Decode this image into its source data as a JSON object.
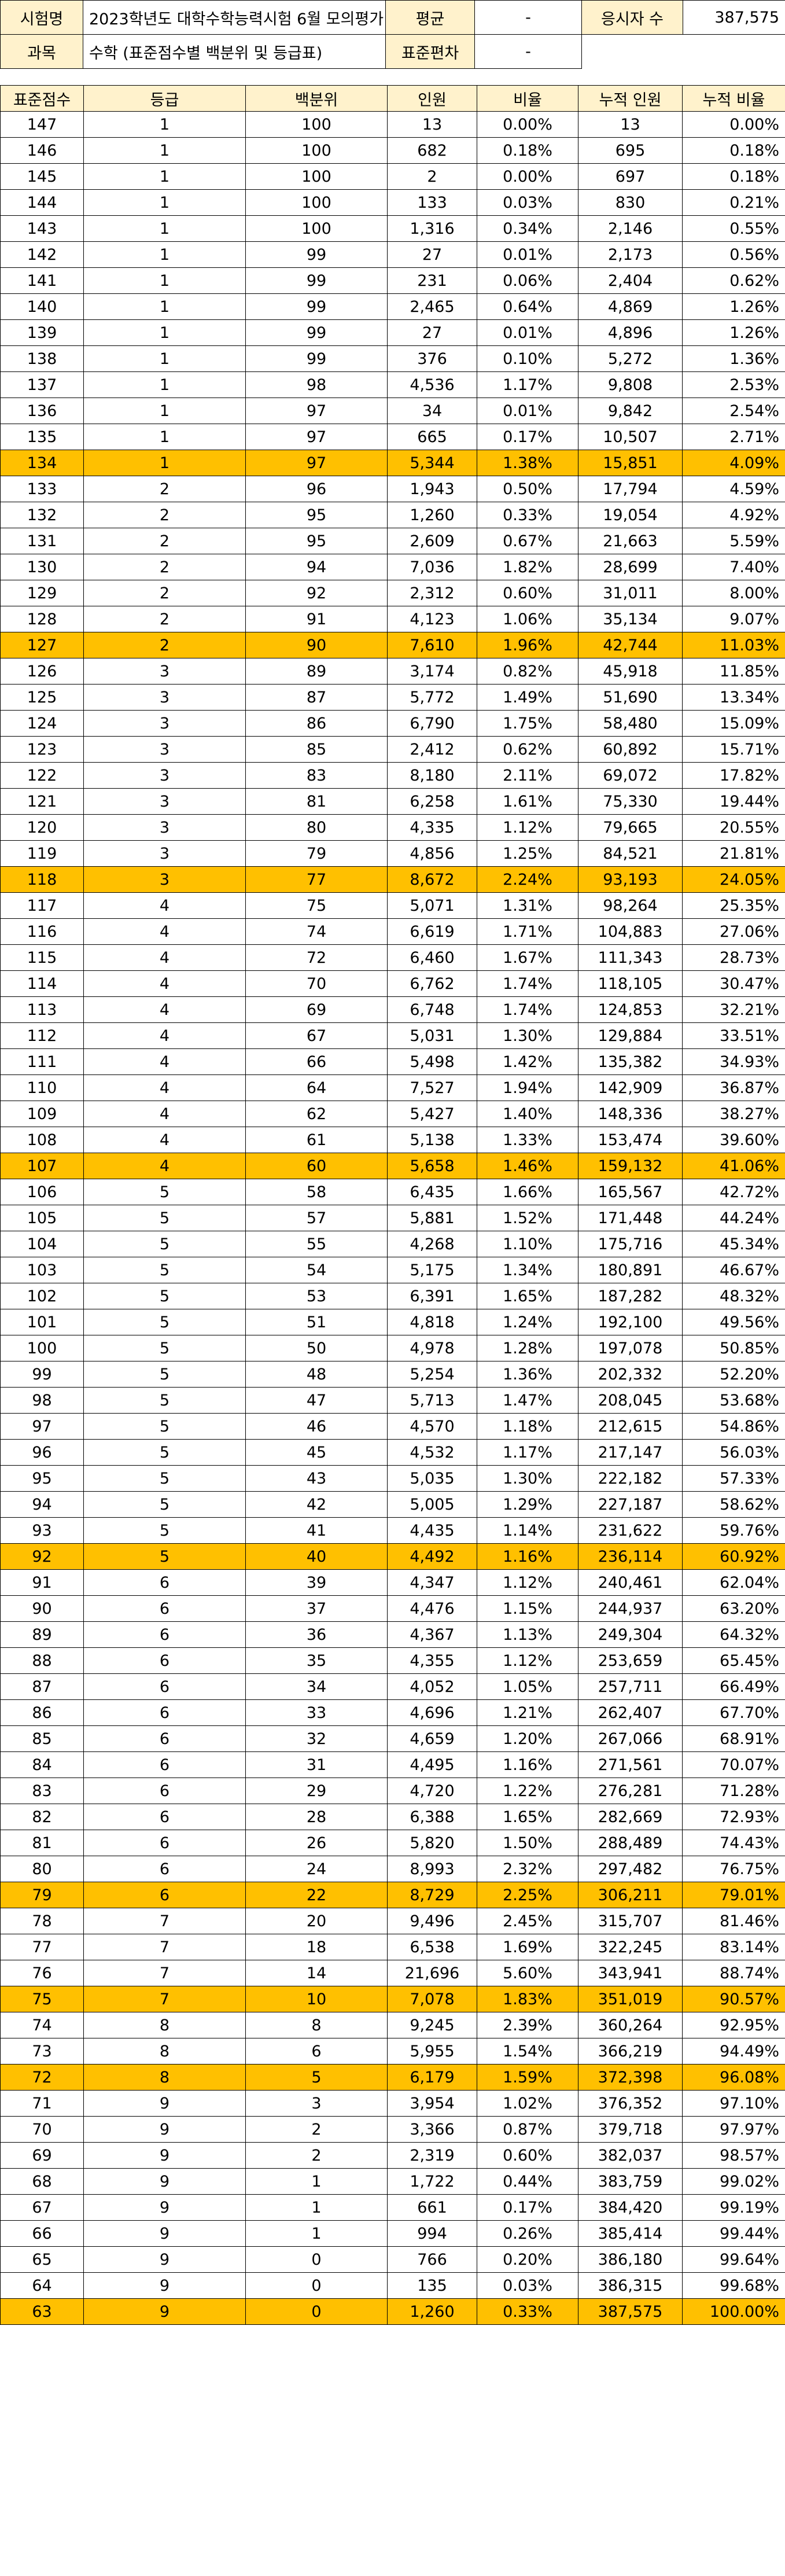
{
  "info": {
    "exam_label": "시험명",
    "exam_value": "2023학년도 대학수학능력시험 6월 모의평가",
    "mean_label": "평균",
    "mean_value": "-",
    "examinees_label": "응시자 수",
    "examinees_value": "387,575",
    "subject_label": "과목",
    "subject_value": "수학 (표준점수별 백분위 및 등급표)",
    "sd_label": "표준편차",
    "sd_value": "-"
  },
  "table": {
    "headers": [
      "표준점수",
      "등급",
      "백분위",
      "인원",
      "비율",
      "누적 인원",
      "누적 비율"
    ],
    "highlight_color": "#ffc000",
    "header_color": "#fff2cc",
    "rows": [
      {
        "score": "147",
        "grade": "1",
        "pct": "100",
        "count": "13",
        "ratio": "0.00%",
        "cum": "13",
        "cumratio": "0.00%",
        "hl": false
      },
      {
        "score": "146",
        "grade": "1",
        "pct": "100",
        "count": "682",
        "ratio": "0.18%",
        "cum": "695",
        "cumratio": "0.18%",
        "hl": false
      },
      {
        "score": "145",
        "grade": "1",
        "pct": "100",
        "count": "2",
        "ratio": "0.00%",
        "cum": "697",
        "cumratio": "0.18%",
        "hl": false
      },
      {
        "score": "144",
        "grade": "1",
        "pct": "100",
        "count": "133",
        "ratio": "0.03%",
        "cum": "830",
        "cumratio": "0.21%",
        "hl": false
      },
      {
        "score": "143",
        "grade": "1",
        "pct": "100",
        "count": "1,316",
        "ratio": "0.34%",
        "cum": "2,146",
        "cumratio": "0.55%",
        "hl": false
      },
      {
        "score": "142",
        "grade": "1",
        "pct": "99",
        "count": "27",
        "ratio": "0.01%",
        "cum": "2,173",
        "cumratio": "0.56%",
        "hl": false
      },
      {
        "score": "141",
        "grade": "1",
        "pct": "99",
        "count": "231",
        "ratio": "0.06%",
        "cum": "2,404",
        "cumratio": "0.62%",
        "hl": false
      },
      {
        "score": "140",
        "grade": "1",
        "pct": "99",
        "count": "2,465",
        "ratio": "0.64%",
        "cum": "4,869",
        "cumratio": "1.26%",
        "hl": false
      },
      {
        "score": "139",
        "grade": "1",
        "pct": "99",
        "count": "27",
        "ratio": "0.01%",
        "cum": "4,896",
        "cumratio": "1.26%",
        "hl": false
      },
      {
        "score": "138",
        "grade": "1",
        "pct": "99",
        "count": "376",
        "ratio": "0.10%",
        "cum": "5,272",
        "cumratio": "1.36%",
        "hl": false
      },
      {
        "score": "137",
        "grade": "1",
        "pct": "98",
        "count": "4,536",
        "ratio": "1.17%",
        "cum": "9,808",
        "cumratio": "2.53%",
        "hl": false
      },
      {
        "score": "136",
        "grade": "1",
        "pct": "97",
        "count": "34",
        "ratio": "0.01%",
        "cum": "9,842",
        "cumratio": "2.54%",
        "hl": false
      },
      {
        "score": "135",
        "grade": "1",
        "pct": "97",
        "count": "665",
        "ratio": "0.17%",
        "cum": "10,507",
        "cumratio": "2.71%",
        "hl": false
      },
      {
        "score": "134",
        "grade": "1",
        "pct": "97",
        "count": "5,344",
        "ratio": "1.38%",
        "cum": "15,851",
        "cumratio": "4.09%",
        "hl": true
      },
      {
        "score": "133",
        "grade": "2",
        "pct": "96",
        "count": "1,943",
        "ratio": "0.50%",
        "cum": "17,794",
        "cumratio": "4.59%",
        "hl": false
      },
      {
        "score": "132",
        "grade": "2",
        "pct": "95",
        "count": "1,260",
        "ratio": "0.33%",
        "cum": "19,054",
        "cumratio": "4.92%",
        "hl": false
      },
      {
        "score": "131",
        "grade": "2",
        "pct": "95",
        "count": "2,609",
        "ratio": "0.67%",
        "cum": "21,663",
        "cumratio": "5.59%",
        "hl": false
      },
      {
        "score": "130",
        "grade": "2",
        "pct": "94",
        "count": "7,036",
        "ratio": "1.82%",
        "cum": "28,699",
        "cumratio": "7.40%",
        "hl": false
      },
      {
        "score": "129",
        "grade": "2",
        "pct": "92",
        "count": "2,312",
        "ratio": "0.60%",
        "cum": "31,011",
        "cumratio": "8.00%",
        "hl": false
      },
      {
        "score": "128",
        "grade": "2",
        "pct": "91",
        "count": "4,123",
        "ratio": "1.06%",
        "cum": "35,134",
        "cumratio": "9.07%",
        "hl": false
      },
      {
        "score": "127",
        "grade": "2",
        "pct": "90",
        "count": "7,610",
        "ratio": "1.96%",
        "cum": "42,744",
        "cumratio": "11.03%",
        "hl": true
      },
      {
        "score": "126",
        "grade": "3",
        "pct": "89",
        "count": "3,174",
        "ratio": "0.82%",
        "cum": "45,918",
        "cumratio": "11.85%",
        "hl": false
      },
      {
        "score": "125",
        "grade": "3",
        "pct": "87",
        "count": "5,772",
        "ratio": "1.49%",
        "cum": "51,690",
        "cumratio": "13.34%",
        "hl": false
      },
      {
        "score": "124",
        "grade": "3",
        "pct": "86",
        "count": "6,790",
        "ratio": "1.75%",
        "cum": "58,480",
        "cumratio": "15.09%",
        "hl": false
      },
      {
        "score": "123",
        "grade": "3",
        "pct": "85",
        "count": "2,412",
        "ratio": "0.62%",
        "cum": "60,892",
        "cumratio": "15.71%",
        "hl": false
      },
      {
        "score": "122",
        "grade": "3",
        "pct": "83",
        "count": "8,180",
        "ratio": "2.11%",
        "cum": "69,072",
        "cumratio": "17.82%",
        "hl": false
      },
      {
        "score": "121",
        "grade": "3",
        "pct": "81",
        "count": "6,258",
        "ratio": "1.61%",
        "cum": "75,330",
        "cumratio": "19.44%",
        "hl": false
      },
      {
        "score": "120",
        "grade": "3",
        "pct": "80",
        "count": "4,335",
        "ratio": "1.12%",
        "cum": "79,665",
        "cumratio": "20.55%",
        "hl": false
      },
      {
        "score": "119",
        "grade": "3",
        "pct": "79",
        "count": "4,856",
        "ratio": "1.25%",
        "cum": "84,521",
        "cumratio": "21.81%",
        "hl": false
      },
      {
        "score": "118",
        "grade": "3",
        "pct": "77",
        "count": "8,672",
        "ratio": "2.24%",
        "cum": "93,193",
        "cumratio": "24.05%",
        "hl": true
      },
      {
        "score": "117",
        "grade": "4",
        "pct": "75",
        "count": "5,071",
        "ratio": "1.31%",
        "cum": "98,264",
        "cumratio": "25.35%",
        "hl": false
      },
      {
        "score": "116",
        "grade": "4",
        "pct": "74",
        "count": "6,619",
        "ratio": "1.71%",
        "cum": "104,883",
        "cumratio": "27.06%",
        "hl": false
      },
      {
        "score": "115",
        "grade": "4",
        "pct": "72",
        "count": "6,460",
        "ratio": "1.67%",
        "cum": "111,343",
        "cumratio": "28.73%",
        "hl": false
      },
      {
        "score": "114",
        "grade": "4",
        "pct": "70",
        "count": "6,762",
        "ratio": "1.74%",
        "cum": "118,105",
        "cumratio": "30.47%",
        "hl": false
      },
      {
        "score": "113",
        "grade": "4",
        "pct": "69",
        "count": "6,748",
        "ratio": "1.74%",
        "cum": "124,853",
        "cumratio": "32.21%",
        "hl": false
      },
      {
        "score": "112",
        "grade": "4",
        "pct": "67",
        "count": "5,031",
        "ratio": "1.30%",
        "cum": "129,884",
        "cumratio": "33.51%",
        "hl": false
      },
      {
        "score": "111",
        "grade": "4",
        "pct": "66",
        "count": "5,498",
        "ratio": "1.42%",
        "cum": "135,382",
        "cumratio": "34.93%",
        "hl": false
      },
      {
        "score": "110",
        "grade": "4",
        "pct": "64",
        "count": "7,527",
        "ratio": "1.94%",
        "cum": "142,909",
        "cumratio": "36.87%",
        "hl": false
      },
      {
        "score": "109",
        "grade": "4",
        "pct": "62",
        "count": "5,427",
        "ratio": "1.40%",
        "cum": "148,336",
        "cumratio": "38.27%",
        "hl": false
      },
      {
        "score": "108",
        "grade": "4",
        "pct": "61",
        "count": "5,138",
        "ratio": "1.33%",
        "cum": "153,474",
        "cumratio": "39.60%",
        "hl": false
      },
      {
        "score": "107",
        "grade": "4",
        "pct": "60",
        "count": "5,658",
        "ratio": "1.46%",
        "cum": "159,132",
        "cumratio": "41.06%",
        "hl": true
      },
      {
        "score": "106",
        "grade": "5",
        "pct": "58",
        "count": "6,435",
        "ratio": "1.66%",
        "cum": "165,567",
        "cumratio": "42.72%",
        "hl": false
      },
      {
        "score": "105",
        "grade": "5",
        "pct": "57",
        "count": "5,881",
        "ratio": "1.52%",
        "cum": "171,448",
        "cumratio": "44.24%",
        "hl": false
      },
      {
        "score": "104",
        "grade": "5",
        "pct": "55",
        "count": "4,268",
        "ratio": "1.10%",
        "cum": "175,716",
        "cumratio": "45.34%",
        "hl": false
      },
      {
        "score": "103",
        "grade": "5",
        "pct": "54",
        "count": "5,175",
        "ratio": "1.34%",
        "cum": "180,891",
        "cumratio": "46.67%",
        "hl": false
      },
      {
        "score": "102",
        "grade": "5",
        "pct": "53",
        "count": "6,391",
        "ratio": "1.65%",
        "cum": "187,282",
        "cumratio": "48.32%",
        "hl": false
      },
      {
        "score": "101",
        "grade": "5",
        "pct": "51",
        "count": "4,818",
        "ratio": "1.24%",
        "cum": "192,100",
        "cumratio": "49.56%",
        "hl": false
      },
      {
        "score": "100",
        "grade": "5",
        "pct": "50",
        "count": "4,978",
        "ratio": "1.28%",
        "cum": "197,078",
        "cumratio": "50.85%",
        "hl": false
      },
      {
        "score": "99",
        "grade": "5",
        "pct": "48",
        "count": "5,254",
        "ratio": "1.36%",
        "cum": "202,332",
        "cumratio": "52.20%",
        "hl": false
      },
      {
        "score": "98",
        "grade": "5",
        "pct": "47",
        "count": "5,713",
        "ratio": "1.47%",
        "cum": "208,045",
        "cumratio": "53.68%",
        "hl": false
      },
      {
        "score": "97",
        "grade": "5",
        "pct": "46",
        "count": "4,570",
        "ratio": "1.18%",
        "cum": "212,615",
        "cumratio": "54.86%",
        "hl": false
      },
      {
        "score": "96",
        "grade": "5",
        "pct": "45",
        "count": "4,532",
        "ratio": "1.17%",
        "cum": "217,147",
        "cumratio": "56.03%",
        "hl": false
      },
      {
        "score": "95",
        "grade": "5",
        "pct": "43",
        "count": "5,035",
        "ratio": "1.30%",
        "cum": "222,182",
        "cumratio": "57.33%",
        "hl": false
      },
      {
        "score": "94",
        "grade": "5",
        "pct": "42",
        "count": "5,005",
        "ratio": "1.29%",
        "cum": "227,187",
        "cumratio": "58.62%",
        "hl": false
      },
      {
        "score": "93",
        "grade": "5",
        "pct": "41",
        "count": "4,435",
        "ratio": "1.14%",
        "cum": "231,622",
        "cumratio": "59.76%",
        "hl": false
      },
      {
        "score": "92",
        "grade": "5",
        "pct": "40",
        "count": "4,492",
        "ratio": "1.16%",
        "cum": "236,114",
        "cumratio": "60.92%",
        "hl": true
      },
      {
        "score": "91",
        "grade": "6",
        "pct": "39",
        "count": "4,347",
        "ratio": "1.12%",
        "cum": "240,461",
        "cumratio": "62.04%",
        "hl": false
      },
      {
        "score": "90",
        "grade": "6",
        "pct": "37",
        "count": "4,476",
        "ratio": "1.15%",
        "cum": "244,937",
        "cumratio": "63.20%",
        "hl": false
      },
      {
        "score": "89",
        "grade": "6",
        "pct": "36",
        "count": "4,367",
        "ratio": "1.13%",
        "cum": "249,304",
        "cumratio": "64.32%",
        "hl": false
      },
      {
        "score": "88",
        "grade": "6",
        "pct": "35",
        "count": "4,355",
        "ratio": "1.12%",
        "cum": "253,659",
        "cumratio": "65.45%",
        "hl": false
      },
      {
        "score": "87",
        "grade": "6",
        "pct": "34",
        "count": "4,052",
        "ratio": "1.05%",
        "cum": "257,711",
        "cumratio": "66.49%",
        "hl": false
      },
      {
        "score": "86",
        "grade": "6",
        "pct": "33",
        "count": "4,696",
        "ratio": "1.21%",
        "cum": "262,407",
        "cumratio": "67.70%",
        "hl": false
      },
      {
        "score": "85",
        "grade": "6",
        "pct": "32",
        "count": "4,659",
        "ratio": "1.20%",
        "cum": "267,066",
        "cumratio": "68.91%",
        "hl": false
      },
      {
        "score": "84",
        "grade": "6",
        "pct": "31",
        "count": "4,495",
        "ratio": "1.16%",
        "cum": "271,561",
        "cumratio": "70.07%",
        "hl": false
      },
      {
        "score": "83",
        "grade": "6",
        "pct": "29",
        "count": "4,720",
        "ratio": "1.22%",
        "cum": "276,281",
        "cumratio": "71.28%",
        "hl": false
      },
      {
        "score": "82",
        "grade": "6",
        "pct": "28",
        "count": "6,388",
        "ratio": "1.65%",
        "cum": "282,669",
        "cumratio": "72.93%",
        "hl": false
      },
      {
        "score": "81",
        "grade": "6",
        "pct": "26",
        "count": "5,820",
        "ratio": "1.50%",
        "cum": "288,489",
        "cumratio": "74.43%",
        "hl": false
      },
      {
        "score": "80",
        "grade": "6",
        "pct": "24",
        "count": "8,993",
        "ratio": "2.32%",
        "cum": "297,482",
        "cumratio": "76.75%",
        "hl": false
      },
      {
        "score": "79",
        "grade": "6",
        "pct": "22",
        "count": "8,729",
        "ratio": "2.25%",
        "cum": "306,211",
        "cumratio": "79.01%",
        "hl": true
      },
      {
        "score": "78",
        "grade": "7",
        "pct": "20",
        "count": "9,496",
        "ratio": "2.45%",
        "cum": "315,707",
        "cumratio": "81.46%",
        "hl": false
      },
      {
        "score": "77",
        "grade": "7",
        "pct": "18",
        "count": "6,538",
        "ratio": "1.69%",
        "cum": "322,245",
        "cumratio": "83.14%",
        "hl": false
      },
      {
        "score": "76",
        "grade": "7",
        "pct": "14",
        "count": "21,696",
        "ratio": "5.60%",
        "cum": "343,941",
        "cumratio": "88.74%",
        "hl": false
      },
      {
        "score": "75",
        "grade": "7",
        "pct": "10",
        "count": "7,078",
        "ratio": "1.83%",
        "cum": "351,019",
        "cumratio": "90.57%",
        "hl": true
      },
      {
        "score": "74",
        "grade": "8",
        "pct": "8",
        "count": "9,245",
        "ratio": "2.39%",
        "cum": "360,264",
        "cumratio": "92.95%",
        "hl": false
      },
      {
        "score": "73",
        "grade": "8",
        "pct": "6",
        "count": "5,955",
        "ratio": "1.54%",
        "cum": "366,219",
        "cumratio": "94.49%",
        "hl": false
      },
      {
        "score": "72",
        "grade": "8",
        "pct": "5",
        "count": "6,179",
        "ratio": "1.59%",
        "cum": "372,398",
        "cumratio": "96.08%",
        "hl": true
      },
      {
        "score": "71",
        "grade": "9",
        "pct": "3",
        "count": "3,954",
        "ratio": "1.02%",
        "cum": "376,352",
        "cumratio": "97.10%",
        "hl": false
      },
      {
        "score": "70",
        "grade": "9",
        "pct": "2",
        "count": "3,366",
        "ratio": "0.87%",
        "cum": "379,718",
        "cumratio": "97.97%",
        "hl": false
      },
      {
        "score": "69",
        "grade": "9",
        "pct": "2",
        "count": "2,319",
        "ratio": "0.60%",
        "cum": "382,037",
        "cumratio": "98.57%",
        "hl": false
      },
      {
        "score": "68",
        "grade": "9",
        "pct": "1",
        "count": "1,722",
        "ratio": "0.44%",
        "cum": "383,759",
        "cumratio": "99.02%",
        "hl": false
      },
      {
        "score": "67",
        "grade": "9",
        "pct": "1",
        "count": "661",
        "ratio": "0.17%",
        "cum": "384,420",
        "cumratio": "99.19%",
        "hl": false
      },
      {
        "score": "66",
        "grade": "9",
        "pct": "1",
        "count": "994",
        "ratio": "0.26%",
        "cum": "385,414",
        "cumratio": "99.44%",
        "hl": false
      },
      {
        "score": "65",
        "grade": "9",
        "pct": "0",
        "count": "766",
        "ratio": "0.20%",
        "cum": "386,180",
        "cumratio": "99.64%",
        "hl": false
      },
      {
        "score": "64",
        "grade": "9",
        "pct": "0",
        "count": "135",
        "ratio": "0.03%",
        "cum": "386,315",
        "cumratio": "99.68%",
        "hl": false
      },
      {
        "score": "63",
        "grade": "9",
        "pct": "0",
        "count": "1,260",
        "ratio": "0.33%",
        "cum": "387,575",
        "cumratio": "100.00%",
        "hl": true
      }
    ]
  }
}
